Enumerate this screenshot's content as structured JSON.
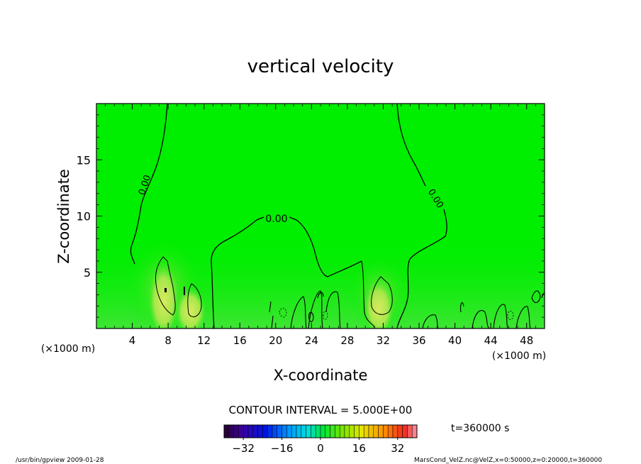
{
  "chart_data": {
    "type": "contour",
    "title": "vertical velocity",
    "xlabel": "X-coordinate",
    "ylabel": "Z-coordinate",
    "x_unit_label": "(×1000 m)",
    "y_unit_label": "(×1000 m)",
    "xlim": [
      0,
      50
    ],
    "ylim": [
      0,
      20
    ],
    "x_ticks": [
      4,
      8,
      12,
      16,
      20,
      24,
      28,
      32,
      36,
      40,
      44,
      48
    ],
    "y_ticks": [
      5,
      10,
      15
    ],
    "contour_label": "0.00",
    "contour_interval_text": "CONTOUR INTERVAL = 5.000E+00",
    "colorbar": {
      "min": -40,
      "max": 40,
      "step": 2,
      "ticks": [
        -32,
        -16,
        0,
        16,
        32
      ],
      "tick_labels": [
        "−32",
        "−16",
        "0",
        "16",
        "32"
      ]
    },
    "time_text": "t=360000 s",
    "positive_cores": [
      {
        "x": 7.5,
        "z_top": 6.3
      },
      {
        "x": 10.5,
        "z_top": 3.9
      },
      {
        "x": 31.5,
        "z_top": 4.6
      }
    ],
    "zero_contour_levels": {
      "left_branch_x_at_top": 7.9,
      "right_branch_x_at_top": 33.0,
      "central_arc_peak_z": 9.8
    }
  },
  "footer": {
    "left": "/usr/bin/gpview   2009-01-28",
    "right": "MarsCond_VelZ.nc@VelZ,x=0:50000,z=0:20000,t=360000"
  },
  "colors": {
    "background_field": "#00ee00",
    "positive_core": "#d8e85a",
    "contour_line": "#000000"
  }
}
